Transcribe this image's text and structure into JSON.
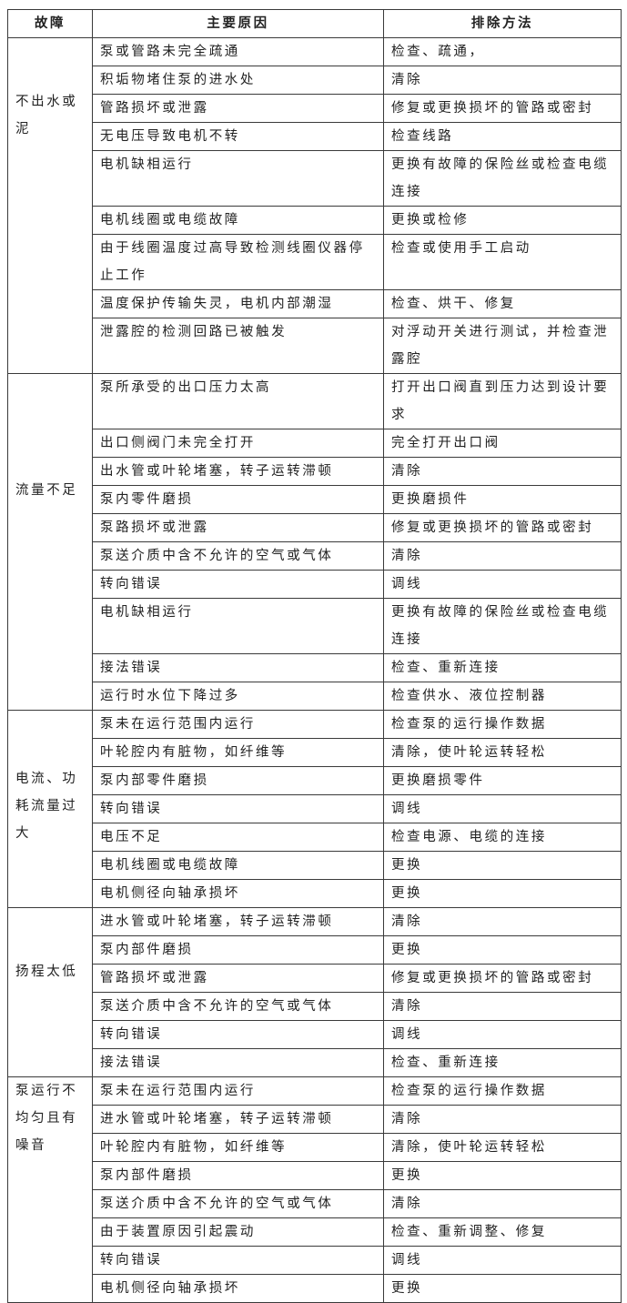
{
  "headers": [
    "故障",
    "主要原因",
    "排除方法"
  ],
  "groups": [
    {
      "fault": "不出水或泥",
      "rows": [
        [
          "泵或管路未完全疏通",
          "检查、疏通，"
        ],
        [
          "积垢物堵住泵的进水处",
          "清除"
        ],
        [
          "管路损坏或泄露",
          "修复或更换损坏的管路或密封"
        ],
        [
          "无电压导致电机不转",
          "检查线路"
        ],
        [
          "电机缺相运行",
          "更换有故障的保险丝或检查电缆连接"
        ],
        [
          "电机线圈或电缆故障",
          "更换或检修"
        ],
        [
          "由于线圈温度过高导致检测线圈仪器停止工作",
          "检查或使用手工启动"
        ],
        [
          "温度保护传输失灵，电机内部潮湿",
          "检查、烘干、修复"
        ],
        [
          "泄露腔的检测回路已被触发",
          "对浮动开关进行测试，并检查泄露腔"
        ]
      ]
    },
    {
      "fault": "流量不足",
      "rows": [
        [
          "泵所承受的出口压力太高",
          "打开出口阀直到压力达到设计要求"
        ],
        [
          "出口侧阀门未完全打开",
          "完全打开出口阀"
        ],
        [
          "出水管或叶轮堵塞，转子运转滞顿",
          "清除"
        ],
        [
          "泵内零件磨损",
          "更换磨损件"
        ],
        [
          "泵路损坏或泄露",
          "修复或更换损坏的管路或密封"
        ],
        [
          "泵送介质中含不允许的空气或气体",
          "清除"
        ],
        [
          "转向错误",
          "调线"
        ],
        [
          "电机缺相运行",
          "更换有故障的保险丝或检查电缆连接"
        ],
        [
          "接法错误",
          "检查、重新连接"
        ],
        [
          "运行时水位下降过多",
          "检查供水、液位控制器"
        ]
      ]
    },
    {
      "fault": "电流、功耗流量过大",
      "rows": [
        [
          "泵未在运行范围内运行",
          "检查泵的运行操作数据"
        ],
        [
          "叶轮腔内有脏物，如纤维等",
          "清除，使叶轮运转轻松"
        ],
        [
          "泵内部零件磨损",
          "更换磨损零件"
        ],
        [
          "转向错误",
          "调线"
        ],
        [
          "电压不足",
          "检查电源、电缆的连接"
        ],
        [
          "电机线圈或电缆故障",
          "更换"
        ],
        [
          "电机侧径向轴承损坏",
          "更换"
        ]
      ]
    },
    {
      "fault": "扬程太低",
      "rows": [
        [
          "进水管或叶轮堵塞，转子运转滞顿",
          "清除"
        ],
        [
          "泵内部件磨损",
          "更换"
        ],
        [
          "管路损坏或泄露",
          "修复或更换损坏的管路或密封"
        ],
        [
          "泵送介质中含不允许的空气或气体",
          "清除"
        ],
        [
          "转向错误",
          "调线"
        ],
        [
          "接法错误",
          "检查、重新连接"
        ]
      ]
    },
    {
      "fault": "泵运行不均匀且有噪音",
      "rows": [
        [
          "泵未在运行范围内运行",
          "检查泵的运行操作数据"
        ],
        [
          "进水管或叶轮堵塞，转子运转滞顿",
          "清除"
        ],
        [
          "叶轮腔内有脏物，如纤维等",
          "清除，使叶轮运转轻松"
        ],
        [
          "泵内部件磨损",
          "更换"
        ],
        [
          "泵送介质中含不允许的空气或气体",
          "清除"
        ],
        [
          "由于装置原因引起震动",
          "检查、重新调整、修复"
        ],
        [
          "转向错误",
          "调线"
        ],
        [
          "电机侧径向轴承损坏",
          "更换"
        ]
      ]
    }
  ]
}
